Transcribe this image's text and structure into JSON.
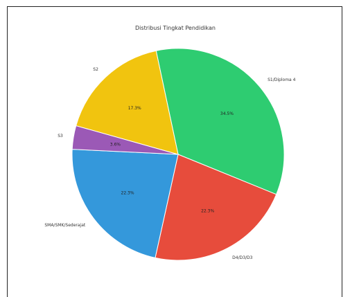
{
  "chart_data": {
    "type": "pie",
    "title": "Distribusi Tingkat Pendidikan",
    "categories": [
      "S1/Diploma 4",
      "D4/D3/D3",
      "SMA/SMK/Sederajat",
      "S3",
      "S2"
    ],
    "values": [
      34.5,
      22.3,
      22.3,
      3.6,
      17.3
    ],
    "percent_labels": [
      "34.5%",
      "22.3%",
      "22.3%",
      "3.6%",
      "17.3%"
    ],
    "colors": [
      "#2ecc71",
      "#e74c3c",
      "#3498db",
      "#9b59b6",
      "#f1c40f"
    ]
  }
}
